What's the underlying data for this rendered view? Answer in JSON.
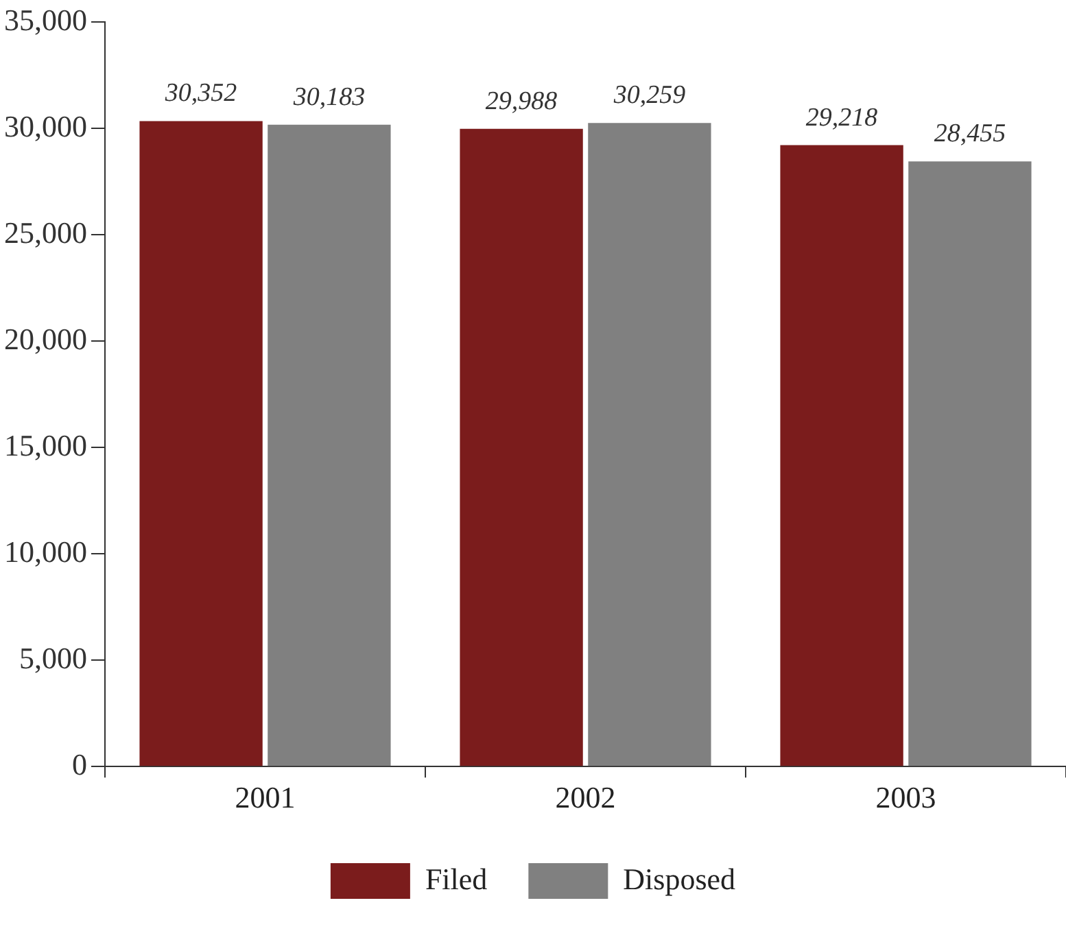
{
  "chart_data": {
    "type": "bar",
    "categories": [
      "2001",
      "2002",
      "2003"
    ],
    "series": [
      {
        "name": "Filed",
        "color": "#7b1c1c",
        "values": [
          30352,
          29988,
          29218
        ],
        "value_labels": [
          "30,352",
          "29,988",
          "29,218"
        ]
      },
      {
        "name": "Disposed",
        "color": "#808080",
        "values": [
          30183,
          30259,
          28455
        ],
        "value_labels": [
          "30,183",
          "30,259",
          "28,455"
        ]
      }
    ],
    "ylim": [
      0,
      35000
    ],
    "yticks": [
      0,
      {
        "value": 5000,
        "label": "5,000"
      },
      {
        "value": 10000,
        "label": "10,000"
      },
      {
        "value": 15000,
        "label": "15,000"
      },
      {
        "value": 20000,
        "label": "20,000"
      },
      {
        "value": 25000,
        "label": "25,000"
      },
      {
        "value": 30000,
        "label": "30,000"
      },
      {
        "value": 35000,
        "label": "35,000"
      }
    ],
    "grid": false,
    "legend": "bottom"
  }
}
